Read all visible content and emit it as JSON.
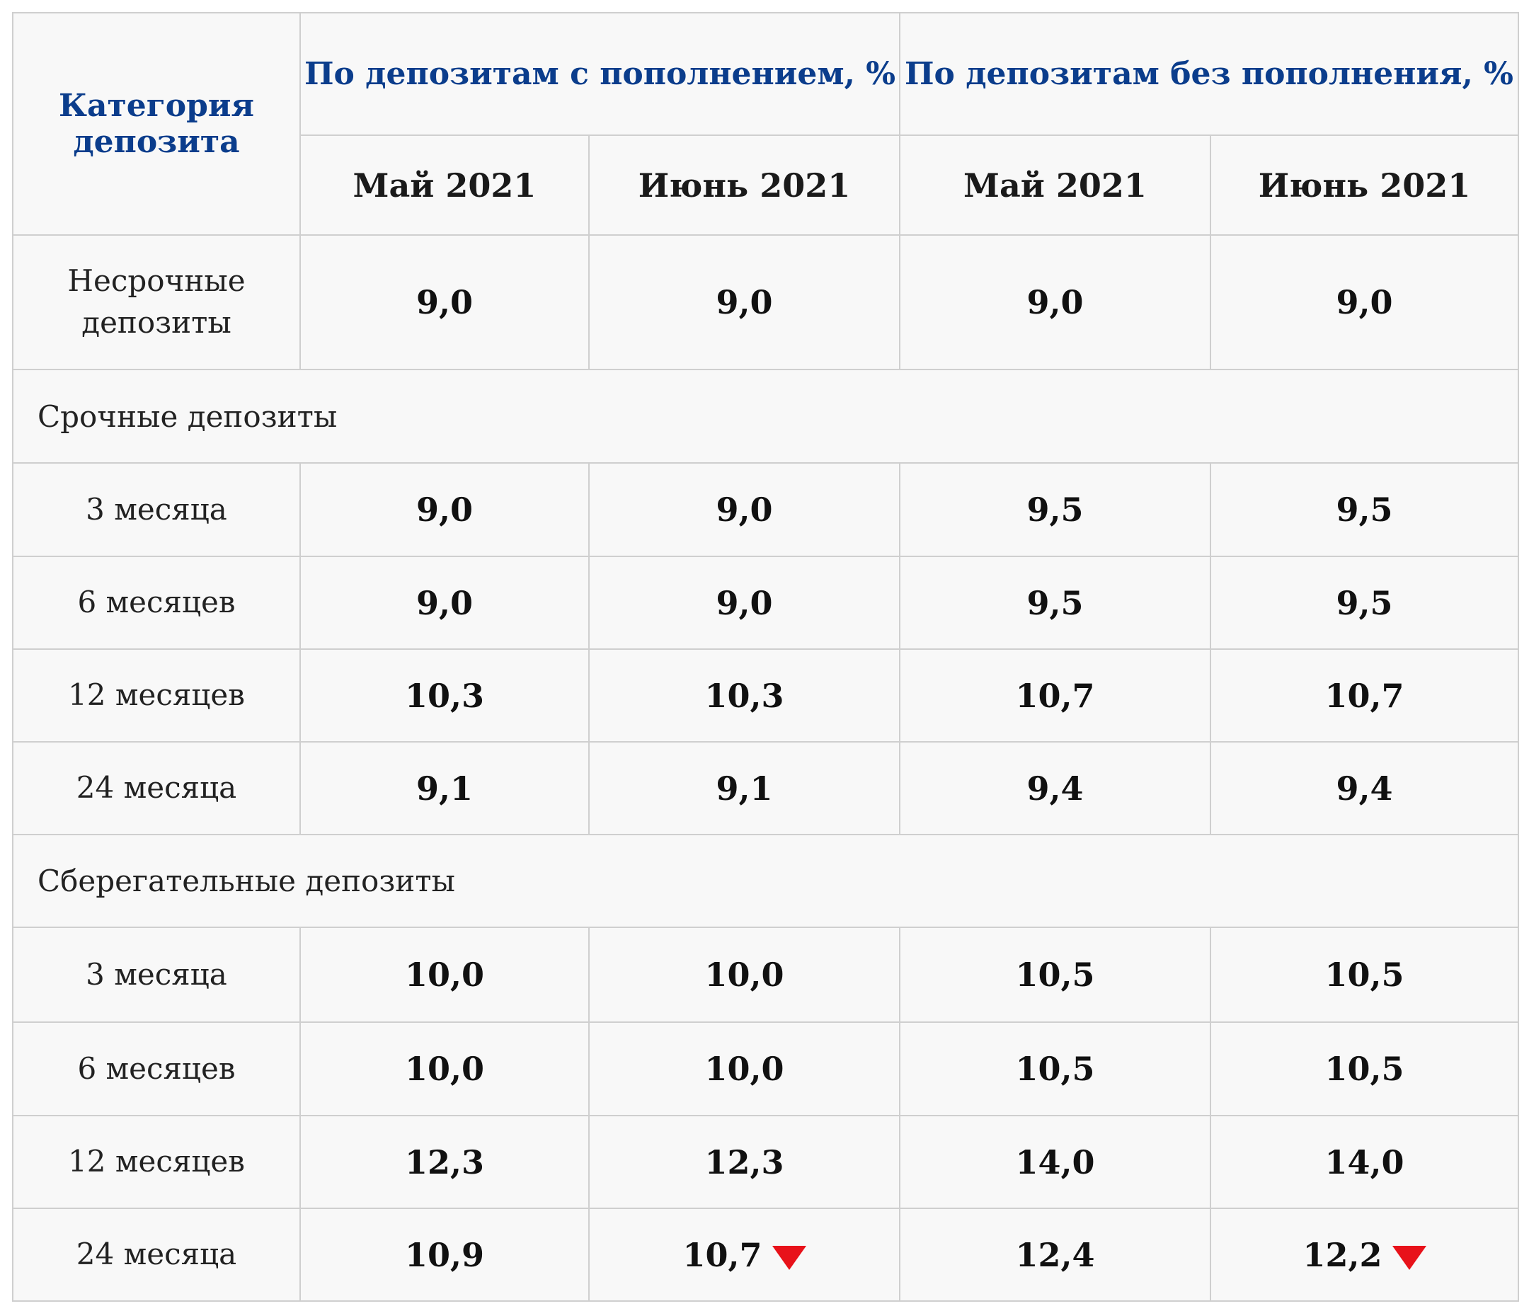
{
  "header": {
    "category": "Категория депозита",
    "with_topup": "По депозитам с пополнением, %",
    "without_topup": "По депозитам без пополнения, %",
    "months": [
      "Май 2021",
      "Июнь 2021",
      "Май 2021",
      "Июнь 2021"
    ]
  },
  "demand": {
    "label": "Несрочные депозиты",
    "values": [
      "9,0",
      "9,0",
      "9,0",
      "9,0"
    ]
  },
  "term": {
    "label": "Срочные депозиты",
    "rows": [
      {
        "label": "3 месяца",
        "values": [
          "9,0",
          "9,0",
          "9,5",
          "9,5"
        ]
      },
      {
        "label": "6 месяцев",
        "values": [
          "9,0",
          "9,0",
          "9,5",
          "9,5"
        ]
      },
      {
        "label": "12 месяцев",
        "values": [
          "10,3",
          "10,3",
          "10,7",
          "10,7"
        ]
      },
      {
        "label": "24 месяца",
        "values": [
          "9,1",
          "9,1",
          "9,4",
          "9,4"
        ]
      }
    ]
  },
  "savings": {
    "label": "Сберегательные депозиты",
    "rows": [
      {
        "label": "3 месяца",
        "values": [
          "10,0",
          "10,0",
          "10,5",
          "10,5"
        ]
      },
      {
        "label": "6 месяцев",
        "values": [
          "10,0",
          "10,0",
          "10,5",
          "10,5"
        ]
      },
      {
        "label": "12 месяцев",
        "values": [
          "12,3",
          "12,3",
          "14,0",
          "14,0"
        ]
      },
      {
        "label": "24 месяца",
        "values": [
          "10,9",
          "10,7",
          "12,4",
          "12,2"
        ]
      }
    ]
  },
  "indicators": {
    "decrease_icon": "red-down-triangle",
    "decrease_color": "#e8121a"
  }
}
